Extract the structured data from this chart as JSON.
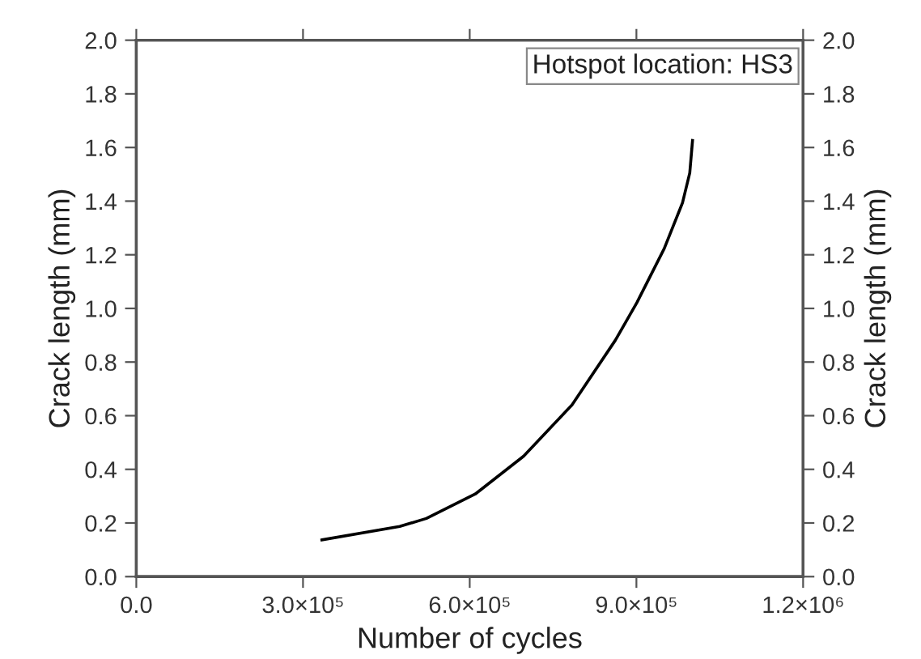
{
  "chart_data": {
    "type": "line",
    "xlabel": "Number of cycles",
    "ylabel": "Crack length (mm)",
    "y2label": "Crack length (mm)",
    "annotations": [
      "Hotspot location: HS3"
    ],
    "series": [
      {
        "color": "#000000",
        "x": [
          334000,
          474000,
          522000,
          610000,
          697000,
          784000,
          862000,
          901000,
          950000,
          983000,
          996000,
          1001000
        ],
        "values": [
          0.137,
          0.187,
          0.217,
          0.308,
          0.449,
          0.64,
          0.881,
          1.022,
          1.223,
          1.394,
          1.505,
          1.626
        ]
      }
    ],
    "xlim": [
      0,
      1200000
    ],
    "xticks": [
      {
        "value": 0,
        "label": "0.0"
      },
      {
        "value": 300000,
        "label": "3.0×10⁵"
      },
      {
        "value": 600000,
        "label": "6.0×10⁵"
      },
      {
        "value": 900000,
        "label": "9.0×10⁵"
      },
      {
        "value": 1200000,
        "label": "1.2×10⁶"
      }
    ],
    "ylim": [
      0,
      2.0
    ],
    "yticks": [
      {
        "value": 0,
        "label": "0.0"
      },
      {
        "value": 0.2,
        "label": "0.2"
      },
      {
        "value": 0.4,
        "label": "0.4"
      },
      {
        "value": 0.6,
        "label": "0.6"
      },
      {
        "value": 0.8,
        "label": "0.8"
      },
      {
        "value": 1.0,
        "label": "1.0"
      },
      {
        "value": 1.2,
        "label": "1.2"
      },
      {
        "value": 1.4,
        "label": "1.4"
      },
      {
        "value": 1.6,
        "label": "1.6"
      },
      {
        "value": 1.8,
        "label": "1.8"
      },
      {
        "value": 2.0,
        "label": "2.0"
      }
    ],
    "y2lim": [
      0,
      2.0
    ],
    "y2ticks": [
      {
        "value": 0,
        "label": "0.0"
      },
      {
        "value": 0.2,
        "label": "0.2"
      },
      {
        "value": 0.4,
        "label": "0.4"
      },
      {
        "value": 0.6,
        "label": "0.6"
      },
      {
        "value": 0.8,
        "label": "0.8"
      },
      {
        "value": 1.0,
        "label": "1.0"
      },
      {
        "value": 1.2,
        "label": "1.2"
      },
      {
        "value": 1.4,
        "label": "1.4"
      },
      {
        "value": 1.6,
        "label": "1.6"
      },
      {
        "value": 1.8,
        "label": "1.8"
      },
      {
        "value": 2.0,
        "label": "2.0"
      }
    ],
    "grid": false,
    "legend": false,
    "marker": "none",
    "line_style": "solid"
  }
}
